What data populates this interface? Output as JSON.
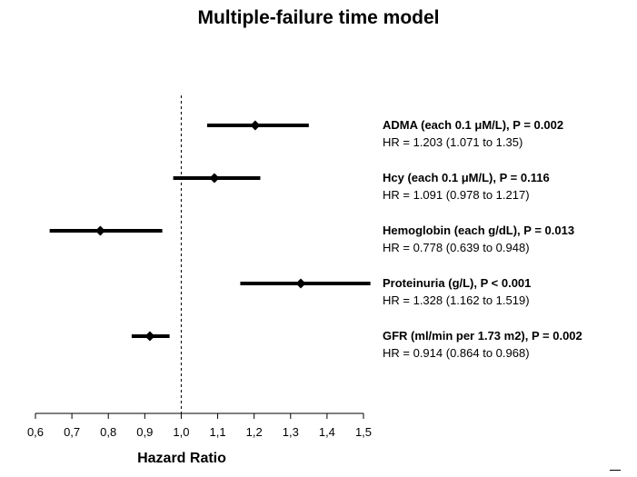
{
  "chart_data": {
    "type": "forest",
    "title": "Multiple-failure time model",
    "xlabel": "Hazard Ratio",
    "xlim": [
      0.6,
      1.5
    ],
    "reference_line": 1.0,
    "x_ticks": [
      "0,6",
      "0,7",
      "0,8",
      "0,9",
      "1,0",
      "1,1",
      "1,2",
      "1,3",
      "1,4",
      "1,5"
    ],
    "grid": false,
    "rows": [
      {
        "label": "ADMA (each 0.1 μM/L), P = 0.002",
        "hr_text": "HR = 1.203 (1.071 to 1.35)",
        "hr": 1.203,
        "lo": 1.071,
        "hi": 1.35
      },
      {
        "label": "Hcy (each 0.1 μM/L), P = 0.116",
        "hr_text": "HR = 1.091 (0.978 to 1.217)",
        "hr": 1.091,
        "lo": 0.978,
        "hi": 1.217
      },
      {
        "label": "Hemoglobin (each g/dL), P = 0.013",
        "hr_text": "HR = 0.778 (0.639 to 0.948)",
        "hr": 0.778,
        "lo": 0.639,
        "hi": 0.948
      },
      {
        "label": "Proteinuria (g/L), P < 0.001",
        "hr_text": "HR = 1.328 (1.162 to 1.519)",
        "hr": 1.328,
        "lo": 1.162,
        "hi": 1.519
      },
      {
        "label": "GFR (ml/min per 1.73 m2), P = 0.002",
        "hr_text": "HR = 0.914 (0.864 to 0.968)",
        "hr": 0.914,
        "lo": 0.864,
        "hi": 0.968
      }
    ]
  }
}
